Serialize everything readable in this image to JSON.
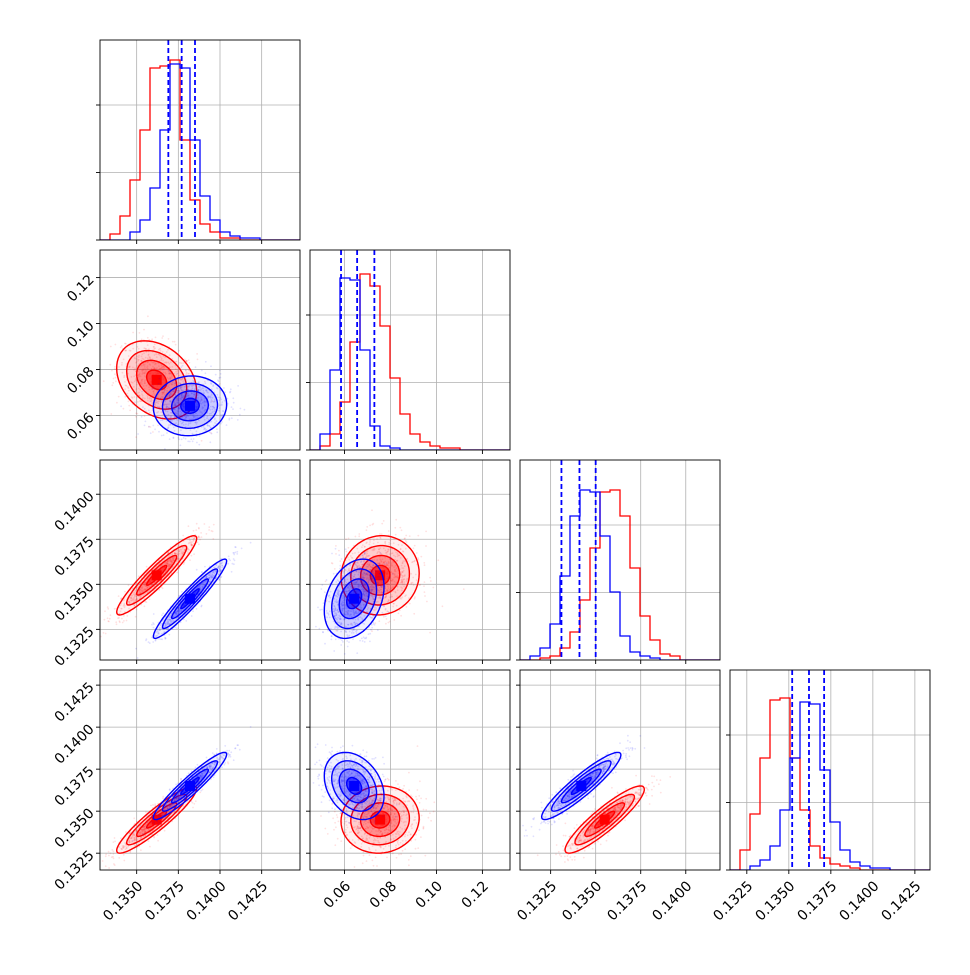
{
  "chart_data": {
    "type": "corner",
    "parameters": [
      "p0",
      "p1",
      "p2",
      "p3"
    ],
    "grid": true,
    "colors": {
      "series_a": "#ff0000",
      "series_b": "#0000ff"
    },
    "ranges": {
      "p0": [
        0.1328,
        0.1448
      ],
      "p1": [
        0.045,
        0.132
      ],
      "p2": [
        0.1308,
        0.1419
      ],
      "p3": [
        0.1315,
        0.1434
      ]
    },
    "ticks": {
      "p0": {
        "values": [
          0.135,
          0.1375,
          0.14,
          0.1425
        ],
        "labels": [
          "0.1350",
          "0.1375",
          "0.1400",
          "0.1425"
        ]
      },
      "p1": {
        "values": [
          0.06,
          0.08,
          0.1,
          0.12
        ],
        "labels": [
          "0.06",
          "0.08",
          "0.10",
          "0.12"
        ]
      },
      "p2": {
        "values": [
          0.1325,
          0.135,
          0.1375,
          0.14
        ],
        "labels": [
          "0.1325",
          "0.1350",
          "0.1375",
          "0.1400"
        ]
      },
      "p3": {
        "values": [
          0.1325,
          0.135,
          0.1375,
          0.14,
          0.1425
        ],
        "labels": [
          "0.1325",
          "0.1350",
          "0.1375",
          "0.1400",
          "0.1425"
        ]
      }
    },
    "series": [
      {
        "color": "#ff0000",
        "mean": [
          0.1362,
          0.0755,
          0.1355,
          0.1345
        ],
        "sd": [
          0.0012,
          0.0085,
          0.0011,
          0.001
        ],
        "corr": {
          "0-1": -0.3,
          "0-2": 0.93,
          "1-2": 0.05,
          "0-3": 0.92,
          "1-3": 0.05,
          "2-3": 0.9
        },
        "histograms": [
          {
            "param": "p0",
            "edges_from": 0.1328,
            "bin_width": 0.0006,
            "counts": [
              0,
              0.03,
              0.12,
              0.3,
              0.55,
              0.86,
              0.87,
              0.9,
              0.5,
              0.2,
              0.08,
              0.04,
              0.01,
              0.01,
              0,
              0,
              0,
              0,
              0,
              0
            ]
          },
          {
            "param": "p1",
            "edges_from": 0.045,
            "bin_width": 0.00435,
            "counts": [
              0,
              0.02,
              0.08,
              0.24,
              0.54,
              0.88,
              0.82,
              0.62,
              0.36,
              0.18,
              0.08,
              0.04,
              0.02,
              0.01,
              0.01,
              0,
              0,
              0,
              0,
              0
            ]
          },
          {
            "param": "p2",
            "edges_from": 0.1308,
            "bin_width": 0.000555,
            "counts": [
              0,
              0,
              0.01,
              0.02,
              0.06,
              0.14,
              0.3,
              0.56,
              0.84,
              0.85,
              0.72,
              0.46,
              0.22,
              0.1,
              0.03,
              0.02,
              0,
              0,
              0,
              0
            ]
          },
          {
            "param": "p3",
            "edges_from": 0.1315,
            "bin_width": 0.000595,
            "counts": [
              0,
              0.1,
              0.28,
              0.56,
              0.85,
              0.86,
              0.56,
              0.3,
              0.12,
              0.06,
              0.03,
              0.02,
              0.01,
              0,
              0,
              0,
              0,
              0,
              0,
              0
            ]
          }
        ]
      },
      {
        "color": "#0000ff",
        "mean": [
          0.1382,
          0.0642,
          0.1342,
          0.1365
        ],
        "sd": [
          0.0011,
          0.0065,
          0.0011,
          0.001
        ],
        "corr": {
          "0-1": 0.05,
          "0-2": 0.95,
          "1-2": 0.3,
          "0-3": 0.94,
          "1-3": -0.3,
          "2-3": 0.92
        },
        "histograms": [
          {
            "param": "p0",
            "edges_from": 0.1328,
            "bin_width": 0.0006,
            "counts": [
              0,
              0,
              0,
              0.04,
              0.1,
              0.26,
              0.55,
              0.88,
              0.86,
              0.5,
              0.22,
              0.1,
              0.04,
              0.02,
              0.01,
              0.01,
              0,
              0,
              0,
              0
            ]
          },
          {
            "param": "p1",
            "edges_from": 0.045,
            "bin_width": 0.00435,
            "counts": [
              0,
              0.08,
              0.4,
              0.86,
              0.85,
              0.5,
              0.12,
              0.02,
              0.01,
              0,
              0,
              0,
              0,
              0,
              0,
              0,
              0,
              0,
              0,
              0
            ]
          },
          {
            "param": "p2",
            "edges_from": 0.1308,
            "bin_width": 0.000555,
            "counts": [
              0,
              0.02,
              0.06,
              0.18,
              0.42,
              0.72,
              0.85,
              0.84,
              0.62,
              0.34,
              0.12,
              0.04,
              0.02,
              0.01,
              0,
              0,
              0,
              0,
              0,
              0
            ]
          },
          {
            "param": "p3",
            "edges_from": 0.1315,
            "bin_width": 0.000595,
            "counts": [
              0,
              0,
              0.02,
              0.05,
              0.12,
              0.3,
              0.56,
              0.84,
              0.83,
              0.5,
              0.24,
              0.1,
              0.04,
              0.02,
              0.01,
              0.01,
              0,
              0,
              0,
              0
            ]
          }
        ]
      }
    ],
    "quantile_lines": {
      "color": "#0000ff",
      "style": "dashed",
      "values": {
        "p0": [
          0.1369,
          0.1377,
          0.1385
        ],
        "p1": [
          0.0585,
          0.0655,
          0.073
        ],
        "p2": [
          0.1331,
          0.1341,
          0.135
        ],
        "p3": [
          0.1352,
          0.1362,
          0.1371
        ]
      }
    }
  }
}
